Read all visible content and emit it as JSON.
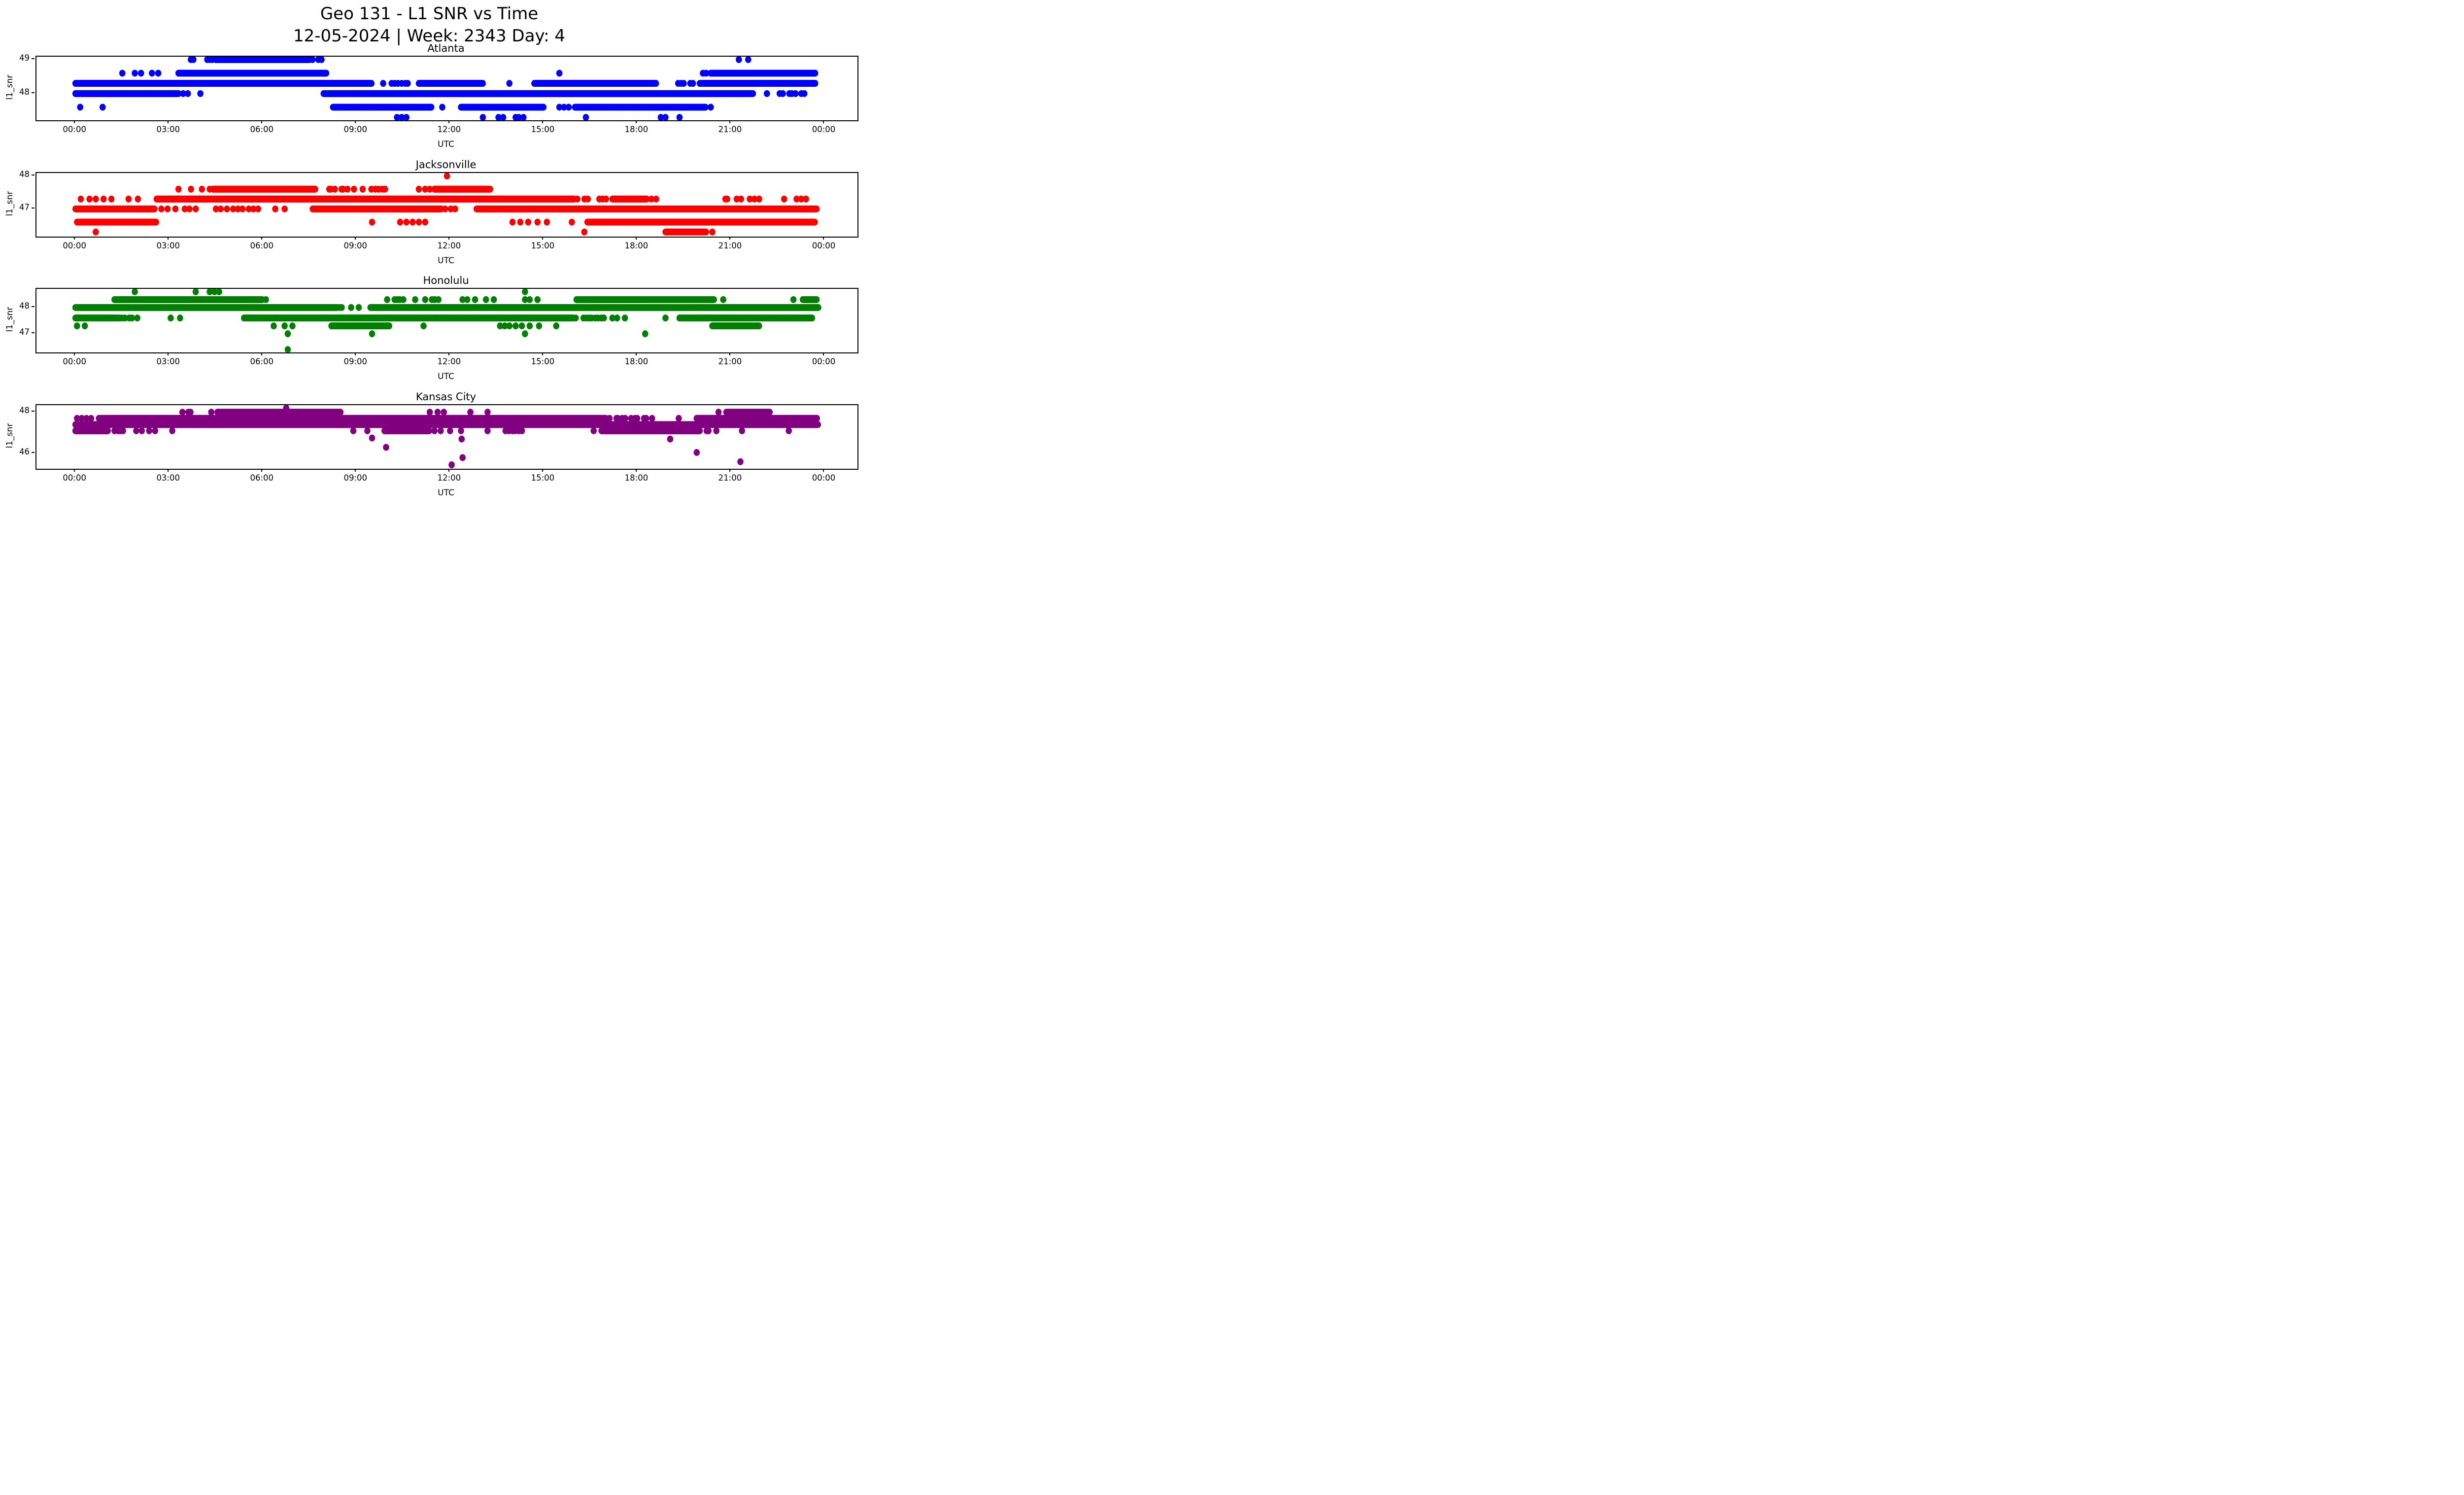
{
  "figure": {
    "title_line1": "Geo 131 - L1 SNR vs Time",
    "title_line2": "12-05-2024 | Week: 2343 Day: 4"
  },
  "chart_data": {
    "type": "scatter",
    "title": "Geo 131 - L1 SNR vs Time",
    "subtitle": "12-05-2024 | Week: 2343 Day: 4",
    "grid": false,
    "legend": "none",
    "xlabel": "UTC",
    "ylabel": "l1_snr",
    "xlim": [
      -1.25,
      25.05
    ],
    "x_unit": "hours UTC, 0 = 00:00",
    "xticks": [
      {
        "h": 0,
        "label": "00:00"
      },
      {
        "h": 3,
        "label": "03:00"
      },
      {
        "h": 6,
        "label": "06:00"
      },
      {
        "h": 9,
        "label": "09:00"
      },
      {
        "h": 12,
        "label": "12:00"
      },
      {
        "h": 15,
        "label": "15:00"
      },
      {
        "h": 18,
        "label": "18:00"
      },
      {
        "h": 21,
        "label": "21:00"
      },
      {
        "h": 24,
        "label": "00:00"
      }
    ],
    "subplots": [
      {
        "title": "Atlanta",
        "color": "#0000ff",
        "ylim": [
          47.215,
          49.085
        ],
        "yticks": [
          {
            "v": 49,
            "label": "49"
          },
          {
            "v": 48,
            "label": "48"
          }
        ],
        "bands": [
          {
            "y": 49.0,
            "dense": [
              [
                4.5,
                7.5
              ]
            ],
            "medium": [
              [
                3.3,
                4.5
              ],
              [
                7.5,
                8.1
              ]
            ],
            "dots": [
              21.25,
              21.55
            ]
          },
          {
            "y": 48.6,
            "dense": [
              [
                3.3,
                8.05
              ],
              [
                20.35,
                23.7
              ]
            ],
            "medium": [],
            "dots": [
              1.5,
              1.9,
              2.1,
              2.45,
              2.65,
              15.5,
              20.1,
              20.2
            ]
          },
          {
            "y": 48.3,
            "dense": [
              [
                0.0,
                9.5
              ],
              [
                11.0,
                13.05
              ],
              [
                14.7,
                18.6
              ],
              [
                20.0,
                23.7
              ]
            ],
            "medium": [
              [
                9.85,
                10.7
              ],
              [
                19.3,
                19.9
              ]
            ],
            "dots": [
              13.9
            ]
          },
          {
            "y": 48.0,
            "dense": [
              [
                0.0,
                3.3
              ],
              [
                7.95,
                21.7
              ]
            ],
            "medium": [
              [
                22.15,
                23.7
              ]
            ],
            "dots": [
              3.45,
              3.6,
              4.0
            ]
          },
          {
            "y": 47.6,
            "dense": [
              [
                8.25,
                11.4
              ],
              [
                12.35,
                15.0
              ],
              [
                16.0,
                20.2
              ]
            ],
            "medium": [],
            "dots": [
              0.15,
              0.87,
              11.75,
              15.5,
              15.65,
              15.8,
              20.35
            ]
          },
          {
            "y": 47.3,
            "dense": [],
            "medium": [],
            "dots": [
              10.3,
              10.45,
              10.6,
              13.05,
              13.55,
              13.7,
              14.1,
              14.2,
              14.35,
              16.35,
              18.75,
              18.9,
              19.35
            ]
          }
        ]
      },
      {
        "title": "Jacksonville",
        "color": "#ff0000",
        "ylim": [
          46.16,
          48.09
        ],
        "yticks": [
          {
            "v": 48,
            "label": "48"
          },
          {
            "v": 47,
            "label": "47"
          }
        ],
        "bands": [
          {
            "y": 48.0,
            "dense": [],
            "medium": [],
            "dots": [
              11.9
            ]
          },
          {
            "y": 47.6,
            "dense": [
              [
                4.4,
                7.7
              ],
              [
                11.5,
                13.3
              ]
            ],
            "medium": [
              [
                7.9,
                9.9
              ]
            ],
            "dots": [
              3.3,
              3.7,
              4.05,
              4.3,
              11.0,
              11.2,
              11.35
            ]
          },
          {
            "y": 47.3,
            "dense": [
              [
                2.6,
                15.95
              ],
              [
                17.2,
                18.3
              ]
            ],
            "medium": [
              [
                16.0,
                17.15
              ],
              [
                20.8,
                21.35
              ]
            ],
            "dots": [
              0.17,
              0.45,
              0.65,
              0.9,
              1.15,
              1.7,
              2.0,
              18.45,
              18.6,
              21.6,
              21.75,
              21.9,
              22.7,
              23.1,
              23.25,
              23.4
            ]
          },
          {
            "y": 47.0,
            "dense": [
              [
                0.0,
                2.55
              ],
              [
                7.6,
                11.7
              ],
              [
                12.85,
                23.75
              ]
            ],
            "medium": [
              [
                11.75,
                12.6
              ]
            ],
            "dots": [
              2.75,
              2.95,
              3.2,
              3.5,
              3.65,
              3.85,
              4.5,
              4.65,
              4.85,
              5.05,
              5.2,
              5.35,
              5.55,
              5.7,
              5.85,
              6.4,
              6.7
            ]
          },
          {
            "y": 46.6,
            "dense": [
              [
                0.05,
                2.6
              ],
              [
                16.4,
                23.7
              ]
            ],
            "medium": [],
            "dots": [
              9.5,
              10.4,
              10.6,
              10.8,
              11.0,
              11.2,
              14.0,
              14.25,
              14.5,
              14.8,
              15.1,
              15.9
            ]
          },
          {
            "y": 46.3,
            "dense": [
              [
                18.9,
                20.2
              ]
            ],
            "medium": [],
            "dots": [
              0.65,
              16.3,
              20.4
            ]
          }
        ]
      },
      {
        "title": "Honolulu",
        "color": "#008000",
        "ylim": [
          46.29,
          48.71
        ],
        "yticks": [
          {
            "v": 48,
            "label": "48"
          },
          {
            "v": 47,
            "label": "47"
          }
        ],
        "bands": [
          {
            "y": 48.6,
            "dense": [],
            "medium": [],
            "dots": [
              1.9,
              3.85,
              4.3,
              4.45,
              4.6,
              14.4
            ]
          },
          {
            "y": 48.3,
            "dense": [
              [
                1.25,
                6.0
              ],
              [
                16.05,
                20.45
              ],
              [
                23.3,
                23.75
              ]
            ],
            "medium": [
              [
                10.0,
                11.6
              ]
            ],
            "dots": [
              6.1,
              12.4,
              12.55,
              12.8,
              13.15,
              13.4,
              14.4,
              14.55,
              14.8,
              20.75,
              23.0
            ]
          },
          {
            "y": 48.0,
            "dense": [
              [
                0.0,
                8.4
              ],
              [
                9.45,
                23.8
              ]
            ],
            "medium": [
              [
                8.45,
                9.3
              ]
            ],
            "dots": []
          },
          {
            "y": 47.6,
            "dense": [
              [
                0.0,
                1.35
              ],
              [
                5.4,
                15.95
              ],
              [
                19.35,
                23.6
              ]
            ],
            "medium": [
              [
                1.4,
                2.3
              ],
              [
                16.05,
                17.1
              ]
            ],
            "dots": [
              3.05,
              3.35,
              17.2,
              17.35,
              17.6,
              18.9
            ]
          },
          {
            "y": 47.3,
            "dense": [
              [
                8.2,
                10.05
              ],
              [
                20.4,
                21.9
              ]
            ],
            "medium": [],
            "dots": [
              0.05,
              0.3,
              6.35,
              6.7,
              6.95,
              11.15,
              13.6,
              13.75,
              13.9,
              14.1,
              14.3,
              14.55,
              14.85,
              15.4
            ]
          },
          {
            "y": 47.0,
            "dense": [],
            "medium": [],
            "dots": [
              6.8,
              9.5,
              14.4,
              18.25
            ]
          },
          {
            "y": 46.4,
            "dense": [],
            "medium": [],
            "dots": [
              6.8
            ]
          }
        ]
      },
      {
        "title": "Kansas City",
        "color": "#800080",
        "ylim": [
          45.26,
          48.34
        ],
        "yticks": [
          {
            "v": 48,
            "label": "48"
          },
          {
            "v": 46,
            "label": "46"
          }
        ],
        "bands": [
          {
            "y": 48.2,
            "dense": [],
            "medium": [],
            "dots": [
              6.75
            ]
          },
          {
            "y": 48.0,
            "dense": [
              [
                4.55,
                8.5
              ],
              [
                20.85,
                22.25
              ]
            ],
            "medium": [
              [
                3.3,
                3.7
              ]
            ],
            "dots": [
              4.35,
              11.35,
              11.6,
              11.8,
              12.65,
              13.2,
              20.6
            ]
          },
          {
            "y": 47.7,
            "dense": [
              [
                0.75,
                17.0
              ],
              [
                19.9,
                23.75
              ]
            ],
            "medium": [
              [
                17.1,
                18.6
              ],
              [
                19.25,
                19.85
              ]
            ],
            "dots": [
              0.05,
              0.2,
              0.35,
              0.5
            ]
          },
          {
            "y": 47.4,
            "dense": [
              [
                0.0,
                23.8
              ]
            ],
            "medium": [],
            "dots": []
          },
          {
            "y": 47.1,
            "dense": [
              [
                0.0,
                1.05
              ],
              [
                9.9,
                11.35
              ],
              [
                16.85,
                20.0
              ]
            ],
            "medium": [
              [
                1.25,
                2.4
              ],
              [
                13.8,
                14.3
              ],
              [
                20.2,
                20.7
              ]
            ],
            "dots": [
              2.55,
              3.1,
              8.9,
              9.35,
              11.5,
              11.7,
              12.0,
              12.35,
              13.2,
              16.6,
              21.35,
              22.85
            ]
          },
          {
            "y": 46.75,
            "dense": [],
            "medium": [],
            "dots": [
              9.5
            ]
          },
          {
            "y": 46.7,
            "dense": [],
            "medium": [],
            "dots": [
              12.37,
              19.05
            ]
          },
          {
            "y": 46.3,
            "dense": [],
            "medium": [],
            "dots": [
              9.95
            ]
          },
          {
            "y": 46.05,
            "dense": [],
            "medium": [],
            "dots": [
              19.9
            ]
          },
          {
            "y": 45.8,
            "dense": [],
            "medium": [],
            "dots": [
              12.4
            ]
          },
          {
            "y": 45.6,
            "dense": [],
            "medium": [],
            "dots": [
              21.3
            ]
          },
          {
            "y": 45.45,
            "dense": [],
            "medium": [],
            "dots": [
              12.05
            ]
          }
        ]
      }
    ]
  }
}
